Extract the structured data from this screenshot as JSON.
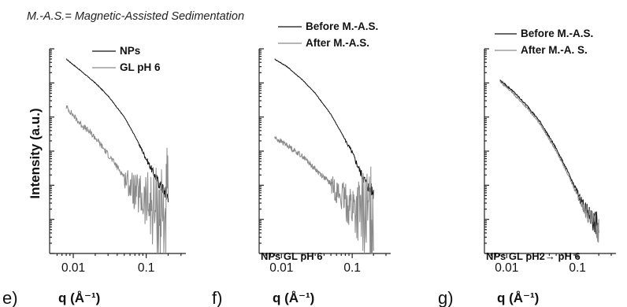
{
  "note": "M.-A.S.= Magnetic-Assisted Sedimentation",
  "ylabel": "Intensity (a.u.)",
  "chart_data": [
    {
      "type": "line",
      "panel": "e)",
      "xlabel": "q (Å⁻¹)",
      "xscale": "log",
      "yscale": "log",
      "xlim": [
        0.0055,
        0.35
      ],
      "ylim": [
        1,
        1000000
      ],
      "x_ticks": [
        "0.01",
        "0.1"
      ],
      "x_tick_values": [
        0.01,
        0.1
      ],
      "legend": "top-right",
      "annotation": "",
      "series": [
        {
          "name": "NPs",
          "color": "#111111",
          "noise": 0.02,
          "noiseStart": 0.08,
          "x": [
            0.008,
            0.012,
            0.02,
            0.03,
            0.05,
            0.07,
            0.1,
            0.13,
            0.16,
            0.2
          ],
          "y": [
            500000,
            250000,
            100000,
            42000,
            10000,
            2800,
            600,
            200,
            90,
            50
          ]
        },
        {
          "name": "GL pH 6",
          "color": "#8a8a8a",
          "noise": 0.15,
          "noiseStart": 0.05,
          "x": [
            0.008,
            0.012,
            0.02,
            0.03,
            0.05,
            0.07,
            0.1,
            0.13,
            0.16,
            0.2
          ],
          "y": [
            20000,
            7000,
            2500,
            800,
            180,
            60,
            30,
            20,
            15,
            12
          ]
        }
      ]
    },
    {
      "type": "line",
      "panel": "f)",
      "xlabel": "q (Å⁻¹)",
      "xscale": "log",
      "yscale": "log",
      "xlim": [
        0.0055,
        0.35
      ],
      "ylim": [
        1,
        1000000
      ],
      "x_ticks": [
        "0.01",
        "0.1"
      ],
      "x_tick_values": [
        0.01,
        0.1
      ],
      "legend": "top",
      "annotation": "NPs GL pH 6",
      "series": [
        {
          "name": "Before M.-A.S.",
          "color": "#111111",
          "noise": 0.02,
          "noiseStart": 0.08,
          "x": [
            0.008,
            0.012,
            0.02,
            0.03,
            0.05,
            0.07,
            0.1,
            0.13,
            0.16,
            0.2
          ],
          "y": [
            500000,
            300000,
            120000,
            50000,
            12000,
            3500,
            900,
            250,
            110,
            60
          ]
        },
        {
          "name": "After M.-A.S.",
          "color": "#8a8a8a",
          "noise": 0.13,
          "noiseStart": 0.05,
          "x": [
            0.008,
            0.012,
            0.02,
            0.03,
            0.05,
            0.07,
            0.1,
            0.13,
            0.16,
            0.2
          ],
          "y": [
            2500,
            1500,
            700,
            300,
            110,
            45,
            22,
            15,
            12,
            10
          ]
        }
      ]
    },
    {
      "type": "line",
      "panel": "g)",
      "xlabel": "q (Å⁻¹)",
      "xscale": "log",
      "yscale": "log",
      "xlim": [
        0.0055,
        0.35
      ],
      "ylim": [
        1,
        1000000
      ],
      "x_ticks": [
        "0.01",
        "0.1"
      ],
      "x_tick_values": [
        0.01,
        0.1
      ],
      "legend": "top",
      "annotation": "NPs GL pH2→ pH 6",
      "series": [
        {
          "name": "Before M.-A.S.",
          "color": "#111111",
          "noise": 0.04,
          "noiseStart": 0.09,
          "x": [
            0.008,
            0.012,
            0.02,
            0.03,
            0.05,
            0.07,
            0.1,
            0.13,
            0.16,
            0.2
          ],
          "y": [
            120000,
            60000,
            20000,
            7000,
            1200,
            300,
            60,
            20,
            10,
            6
          ]
        },
        {
          "name": "After M.-A. S.",
          "color": "#8a8a8a",
          "noise": 0.04,
          "noiseStart": 0.09,
          "x": [
            0.008,
            0.012,
            0.02,
            0.03,
            0.05,
            0.07,
            0.1,
            0.13,
            0.16,
            0.2
          ],
          "y": [
            110000,
            52000,
            17000,
            6000,
            1000,
            250,
            50,
            17,
            9,
            5
          ]
        }
      ]
    }
  ]
}
